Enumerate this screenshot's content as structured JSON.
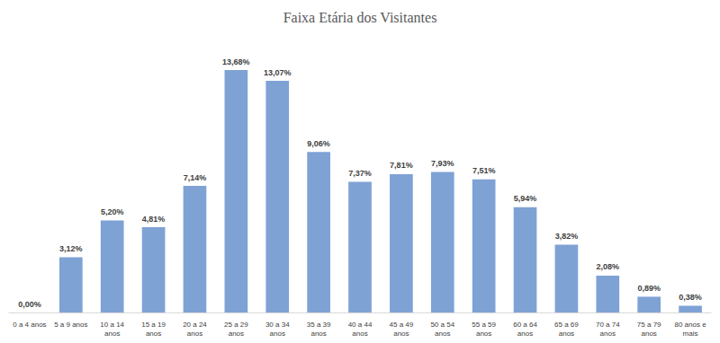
{
  "chart_data": {
    "type": "bar",
    "title": "Faixa Etária dos Visitantes",
    "categories": [
      "0 a 4 anos",
      "5 a 9 anos",
      "10 a 14\nanos",
      "15 a 19\nanos",
      "20 a 24\nanos",
      "25 a 29\nanos",
      "30 a 34\nanos",
      "35 a 39\nanos",
      "40 a 44\nanos",
      "45 a 49\nanos",
      "50 a 54\nanos",
      "55 a 59\nanos",
      "60 a 64\nanos",
      "65 a 69\nanos",
      "70 a 74\nanos",
      "75 a 79\nanos",
      "80 anos e\nmais"
    ],
    "values": [
      0.0,
      3.12,
      5.2,
      4.81,
      7.14,
      13.68,
      13.07,
      9.06,
      7.37,
      7.81,
      7.93,
      7.51,
      5.94,
      3.82,
      2.08,
      0.89,
      0.38
    ],
    "value_labels": [
      "0,00%",
      "3,12%",
      "5,20%",
      "4,81%",
      "7,14%",
      "13,68%",
      "13,07%",
      "9,06%",
      "7,37%",
      "7,81%",
      "7,93%",
      "7,51%",
      "5,94%",
      "3,82%",
      "2,08%",
      "0,89%",
      "0,38%"
    ],
    "color": "#7fa2d5",
    "grid": false,
    "data_labels": true,
    "tick_labels": "x"
  }
}
